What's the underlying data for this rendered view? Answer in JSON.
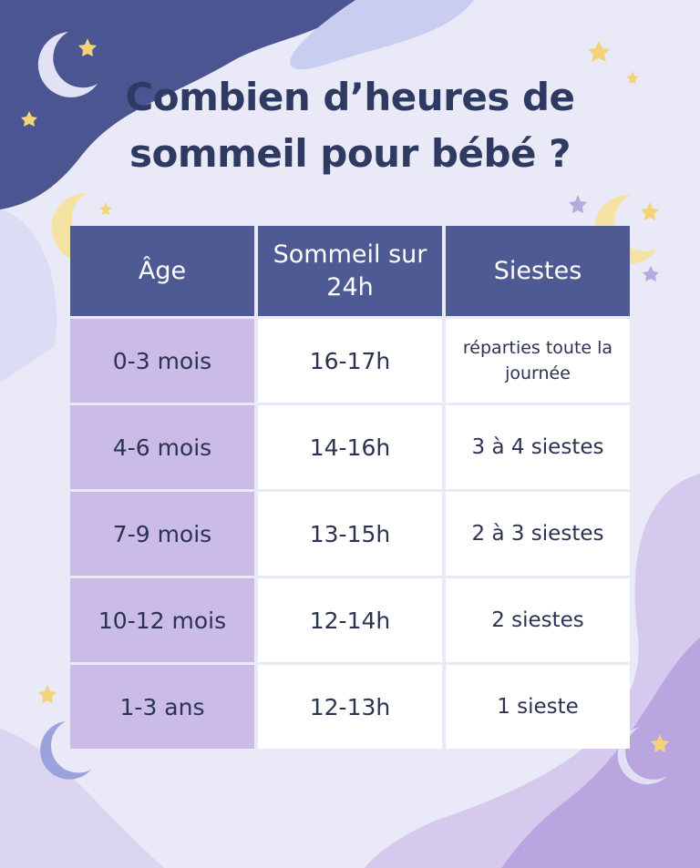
{
  "title": "Combien d’heures de sommeil pour bébé ?",
  "table": {
    "header": [
      "Âge",
      "Sommeil sur 24h",
      "Siestes"
    ],
    "rows": [
      [
        "0-3 mois",
        "16-17h",
        "réparties toute la journée"
      ],
      [
        "4-6 mois",
        "14-16h",
        "3 à 4 siestes"
      ],
      [
        "7-9 mois",
        "13-15h",
        "2 à 3 siestes"
      ],
      [
        "10-12 mois",
        "12-14h",
        "2 siestes"
      ],
      [
        "1-3 ans",
        "12-13h",
        "1 sieste"
      ]
    ]
  }
}
